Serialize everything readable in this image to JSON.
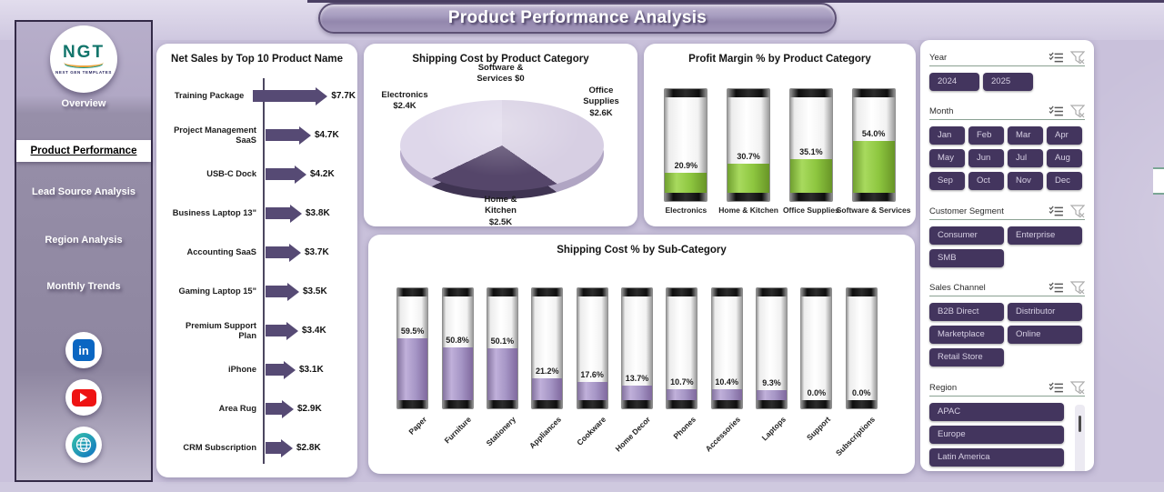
{
  "page_title": "Product Performance Analysis",
  "logo": {
    "text": "NGT",
    "subtext": "NEXT GEN TEMPLATES"
  },
  "sidebar": {
    "items": [
      {
        "label": "Overview",
        "active": false
      },
      {
        "label": "Product Performance",
        "active": true
      },
      {
        "label": "Lead Source  Analysis",
        "active": false
      },
      {
        "label": "Region Analysis",
        "active": false
      },
      {
        "label": "Monthly Trends",
        "active": false
      }
    ],
    "social": [
      "linkedin",
      "youtube",
      "website"
    ]
  },
  "colors": {
    "arrow_bar": "#564a74",
    "battery_green": "#8dc63f",
    "battery_purple": "#a595c5",
    "pie_dark": "#55466a",
    "pie_light_office": "#d7cfe3",
    "pie_light_electronics": "#ded7ea",
    "slicer_button": "#43355e",
    "slicer_separator": "#8aa192"
  },
  "chart_data": [
    {
      "type": "bar",
      "orientation": "horizontal",
      "title": "Net Sales by Top 10 Product Name",
      "categories": [
        "Training Package",
        "Project Management SaaS",
        "USB-C Dock",
        "Business Laptop 13\"",
        "Accounting SaaS",
        "Gaming Laptop 15\"",
        "Premium Support Plan",
        "iPhone",
        "Area Rug",
        "CRM Subscription"
      ],
      "values": [
        7.7,
        4.7,
        4.2,
        3.8,
        3.7,
        3.5,
        3.4,
        3.1,
        2.9,
        2.8
      ],
      "labels": [
        "$7.7K",
        "$4.7K",
        "$4.2K",
        "$3.8K",
        "$3.7K",
        "$3.5K",
        "$3.4K",
        "$3.1K",
        "$2.9K",
        "$2.8K"
      ],
      "unit": "K USD",
      "bar_color": "#564a74"
    },
    {
      "type": "pie",
      "title": "Shipping Cost by Product Category",
      "slices": [
        {
          "label": "Software & Services",
          "value": 0,
          "display": "Software & Services $0",
          "lines": [
            "Software &",
            "Services $0"
          ],
          "color": "#d7cfe3"
        },
        {
          "label": "Office Supplies",
          "value": 2.6,
          "display": "Office Supplies $2.6K",
          "lines": [
            "Office",
            "Supplies",
            "$2.6K"
          ],
          "color": "#d7cfe3"
        },
        {
          "label": "Home & Kitchen",
          "value": 2.5,
          "display": "Home & Kitchen $2.5K",
          "lines": [
            "Home &",
            "Kitchen",
            "$2.5K"
          ],
          "color": "#55466a"
        },
        {
          "label": "Electronics",
          "value": 2.4,
          "display": "Electronics $2.4K",
          "lines": [
            "Electronics",
            "$2.4K"
          ],
          "color": "#ded7ea"
        }
      ]
    },
    {
      "type": "bar",
      "style": "battery",
      "title": "Profit Margin % by Product Category",
      "categories": [
        "Electronics",
        "Home & Kitchen",
        "Office Supplies",
        "Software & Services"
      ],
      "values": [
        20.9,
        30.7,
        35.1,
        54.0
      ],
      "labels": [
        "20.9%",
        "30.7%",
        "35.1%",
        "54.0%"
      ],
      "ylim": [
        0,
        100
      ],
      "fill_color": "#8dc63f"
    },
    {
      "type": "bar",
      "style": "battery",
      "title": "Shipping Cost % by Sub-Category",
      "categories": [
        "Paper",
        "Furniture",
        "Stationery",
        "Appliances",
        "Cookware",
        "Home Decor",
        "Phones",
        "Accessories",
        "Laptops",
        "Support",
        "Subscriptions"
      ],
      "values": [
        59.5,
        50.8,
        50.1,
        21.2,
        17.6,
        13.7,
        10.7,
        10.4,
        9.3,
        0.0,
        0.0
      ],
      "labels": [
        "59.5%",
        "50.8%",
        "50.1%",
        "21.2%",
        "17.6%",
        "13.7%",
        "10.7%",
        "10.4%",
        "9.3%",
        "0.0%",
        "0.0%"
      ],
      "ylim": [
        0,
        100
      ],
      "fill_color": "#a595c5"
    }
  ],
  "filters": {
    "year": {
      "label": "Year",
      "options": [
        "2024",
        "2025"
      ]
    },
    "month": {
      "label": "Month",
      "options": [
        "Jan",
        "Feb",
        "Mar",
        "Apr",
        "May",
        "Jun",
        "Jul",
        "Aug",
        "Sep",
        "Oct",
        "Nov",
        "Dec"
      ]
    },
    "customer_segment": {
      "label": "Customer Segment",
      "options": [
        "Consumer",
        "Enterprise",
        "SMB"
      ]
    },
    "sales_channel": {
      "label": "Sales Channel",
      "options": [
        "B2B Direct",
        "Distributor",
        "Marketplace",
        "Online",
        "Retail Store"
      ]
    },
    "region": {
      "label": "Region",
      "options": [
        "APAC",
        "Europe",
        "Latin America"
      ]
    }
  }
}
